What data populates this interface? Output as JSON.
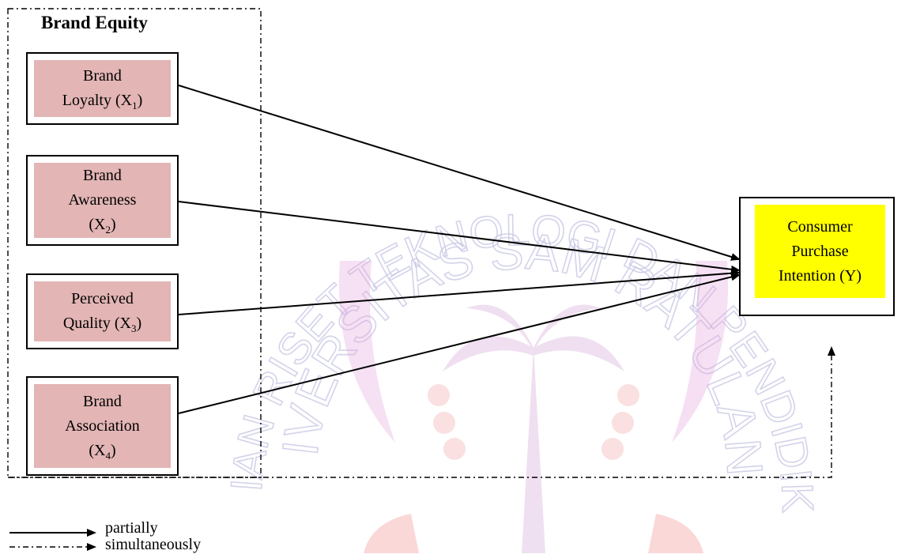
{
  "group": {
    "title": "Brand Equity"
  },
  "variables": [
    {
      "line1": "Brand",
      "line2": "Loyalty (X",
      "sub": "1",
      "line3": "",
      "tail": ")"
    },
    {
      "line1": "Brand",
      "line2": "Awareness",
      "line3": "(X",
      "sub": "2",
      "tail": ")"
    },
    {
      "line1": "Perceived",
      "line2": "Quality (X",
      "sub": "3",
      "line3": "",
      "tail": ")"
    },
    {
      "line1": "Brand",
      "line2": "Association",
      "line3": "(X",
      "sub": "4",
      "tail": ")"
    }
  ],
  "dependent": {
    "line1": "Consumer",
    "line2": "Purchase",
    "line3": "Intention (Y)"
  },
  "legend": {
    "partial": "partially",
    "simultaneous": "simultaneously"
  },
  "watermark": {
    "line1": "KEMENTERIAN RISET TEKNOLOGI DAN PENDIDIKAN TINGGI",
    "line2": "UNIVERSITAS SAM RATULANGI"
  },
  "colors": {
    "variable_fill": "#e3b5b5",
    "dependent_fill": "#ffff00",
    "line": "#000000"
  }
}
